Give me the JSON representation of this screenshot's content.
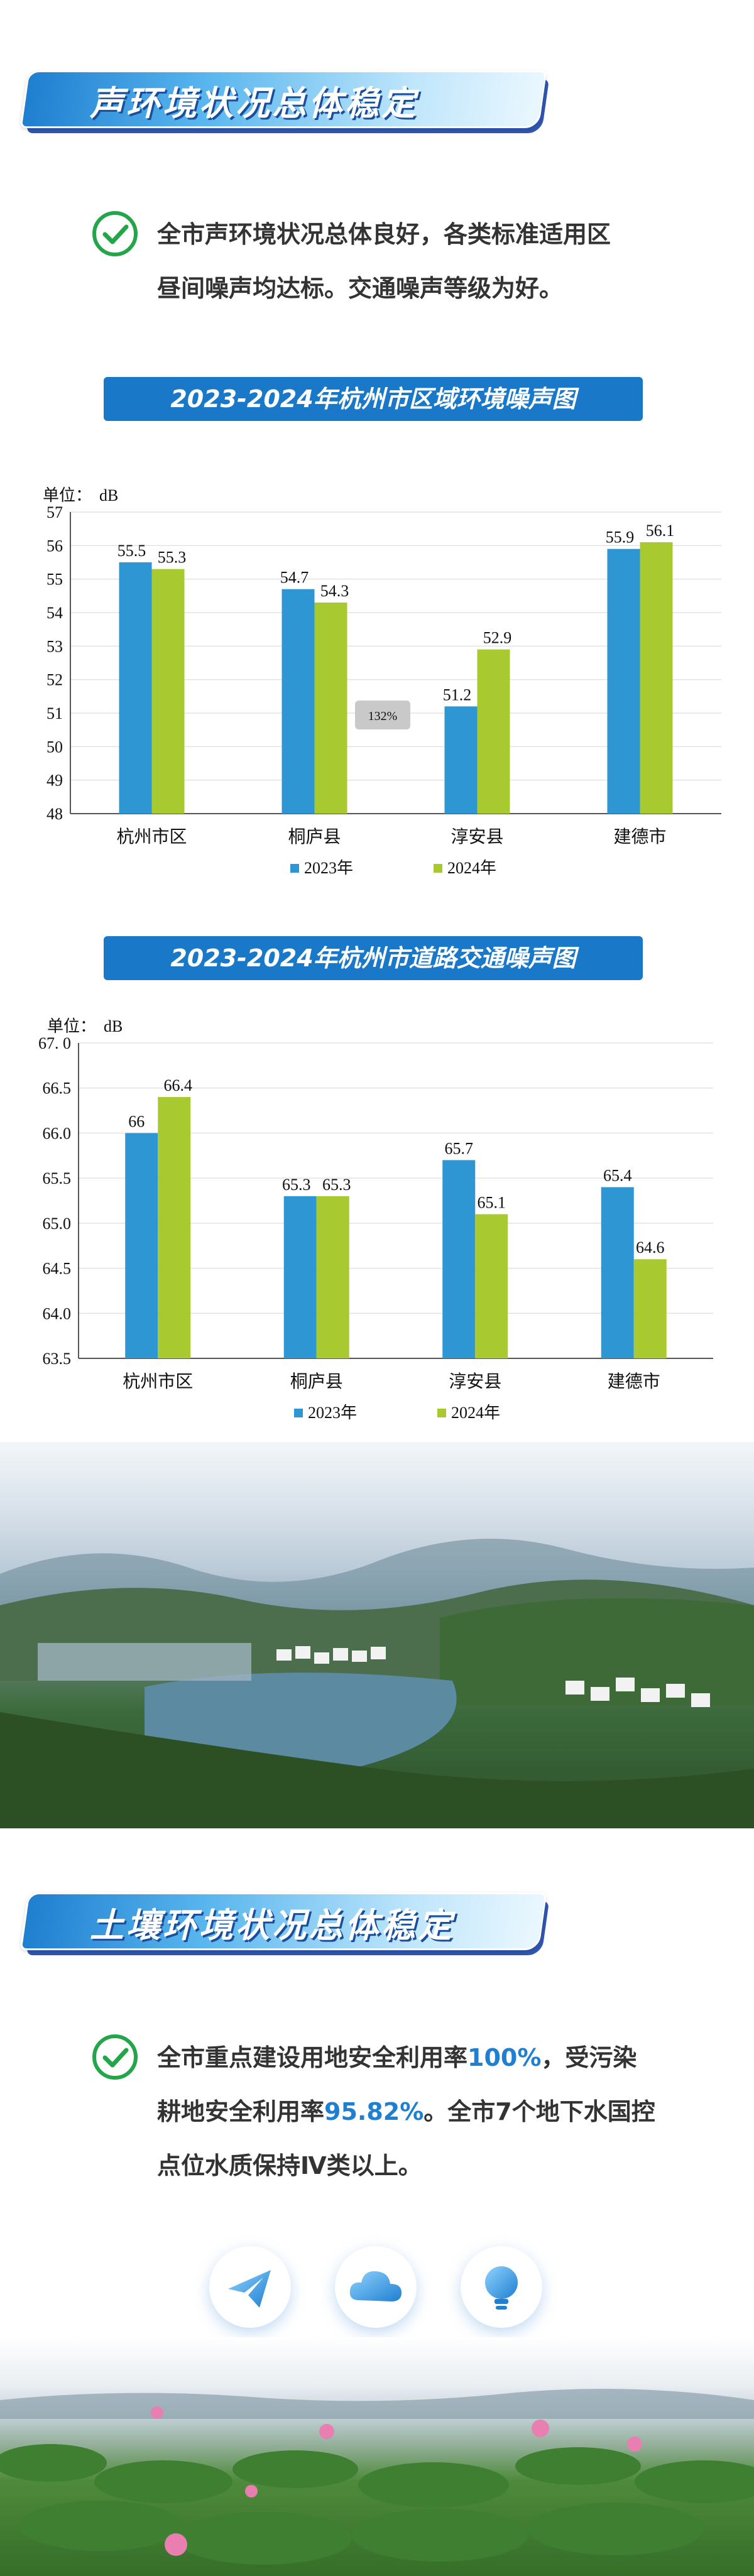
{
  "section1": {
    "title": "声环境状况总体稳定"
  },
  "para1": {
    "line1": "全市声环境状况总体良好，各类标准适用区",
    "line2": "昼间噪声均达标。交通噪声等级为好。"
  },
  "chart_data": [
    {
      "type": "bar",
      "title": "2023-2024年杭州市区域环境噪声图",
      "unit_label": "单位：",
      "unit": "dB",
      "categories": [
        "杭州市区",
        "桐庐县",
        "淳安县",
        "建德市"
      ],
      "series": [
        {
          "name": "2023年",
          "values": [
            55.5,
            54.7,
            51.2,
            55.9
          ],
          "color": "#2e96d3"
        },
        {
          "name": "2024年",
          "values": [
            55.3,
            54.3,
            52.9,
            56.1
          ],
          "color": "#a8c92f"
        }
      ],
      "ylim": [
        48,
        57
      ],
      "yticks": [
        "48",
        "49",
        "50",
        "51",
        "52",
        "53",
        "54",
        "55",
        "56",
        "57"
      ],
      "grid": true,
      "legend": "bottom",
      "watermark": "132%"
    },
    {
      "type": "bar",
      "title": "2023-2024年杭州市道路交通噪声图",
      "unit_label": "单位：",
      "unit": "dB",
      "categories": [
        "杭州市区",
        "桐庐县",
        "淳安县",
        "建德市"
      ],
      "series": [
        {
          "name": "2023年",
          "values": [
            66,
            65.3,
            65.7,
            65.4
          ],
          "color": "#2e96d3"
        },
        {
          "name": "2024年",
          "values": [
            66.4,
            65.3,
            65.1,
            64.6
          ],
          "color": "#a8c92f"
        }
      ],
      "ylim": [
        63.5,
        67.0
      ],
      "yticks": [
        "63.5",
        "64.0",
        "64.5",
        "65.0",
        "65.5",
        "66.0",
        "66.5",
        "67. 0"
      ],
      "grid": true,
      "legend": "bottom"
    }
  ],
  "section2": {
    "title": "土壤环境状况总体稳定"
  },
  "para2": {
    "line1a": "全市重点建设用地安全利用率",
    "line1b": "100%",
    "line1c": "，受污染",
    "line2a": "耕地安全利用率",
    "line2b": "95.82%",
    "line2c": "。全市7个地下水国控",
    "line3": "点位水质保持Ⅳ类以上。"
  },
  "colors": {
    "accent": "#1f7fd0",
    "check": "#23a64a",
    "bar2023": "#2e96d3",
    "bar2024": "#a8c92f"
  },
  "icons": [
    "paper-plane-icon",
    "cloud-icon",
    "lightbulb-icon"
  ]
}
